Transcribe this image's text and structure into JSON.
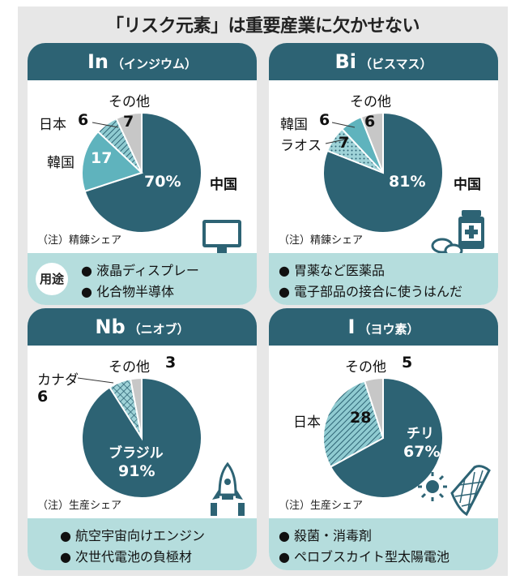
{
  "title": "「リスク元素」は重要産業に欠かせない",
  "colors": {
    "china": "#2d6374",
    "korea": "#5fb3bd",
    "japan": "#5fb3bd",
    "other": "#c7c7c7",
    "header": "#2d6374",
    "footer": "#b5dddd"
  },
  "usage_label": "用途",
  "panels": [
    {
      "symbol": "In",
      "name": "（インジウム）",
      "note": "（注）精錬シェア",
      "uses": [
        "液晶ディスプレー",
        "化合物半導体"
      ],
      "icon": "monitor-icon"
    },
    {
      "symbol": "Bi",
      "name": "（ビスマス）",
      "note": "（注）精錬シェア",
      "uses": [
        "胃薬など医薬品",
        "電子部品の接合に使うはんだ"
      ],
      "icon": "medicine-bottle-icon"
    },
    {
      "symbol": "Nb",
      "name": "（ニオブ）",
      "note": "（注）生産シェア",
      "uses": [
        "航空宇宙向けエンジン",
        "次世代電池の負極材"
      ],
      "icon": "rocket-icon"
    },
    {
      "symbol": "I",
      "name": "（ヨウ素）",
      "note": "（注）生産シェア",
      "uses": [
        "殺菌・消毒剤",
        "ペロブスカイト型太陽電池"
      ],
      "icon": "solar-panel-icon"
    }
  ],
  "chart_data": [
    {
      "type": "pie",
      "title": "In（インジウム）",
      "slices": [
        {
          "label": "中国",
          "value": 70
        },
        {
          "label": "韓国",
          "value": 17
        },
        {
          "label": "日本",
          "value": 6
        },
        {
          "label": "その他",
          "value": 7
        }
      ]
    },
    {
      "type": "pie",
      "title": "Bi（ビスマス）",
      "slices": [
        {
          "label": "中国",
          "value": 81
        },
        {
          "label": "ラオス",
          "value": 7
        },
        {
          "label": "韓国",
          "value": 6
        },
        {
          "label": "その他",
          "value": 6
        }
      ]
    },
    {
      "type": "pie",
      "title": "Nb（ニオブ）",
      "slices": [
        {
          "label": "ブラジル",
          "value": 91
        },
        {
          "label": "カナダ",
          "value": 6
        },
        {
          "label": "その他",
          "value": 3
        }
      ]
    },
    {
      "type": "pie",
      "title": "I（ヨウ素）",
      "slices": [
        {
          "label": "チリ",
          "value": 67
        },
        {
          "label": "日本",
          "value": 28
        },
        {
          "label": "その他",
          "value": 5
        }
      ]
    }
  ]
}
